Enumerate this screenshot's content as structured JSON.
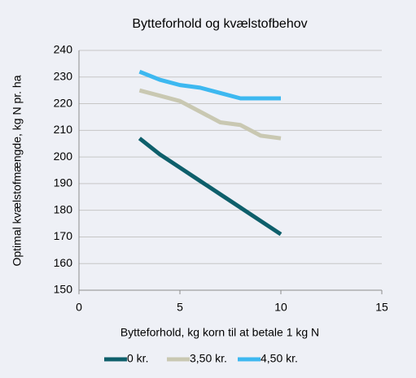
{
  "chart_data": {
    "type": "line",
    "title": "Bytteforhold og kvælstofbehov",
    "x_label": "Bytteforhold, kg korn til at betale 1 kg N",
    "y_label": "Optimal kvælstofmængde, kg N pr. ha",
    "x": [
      3,
      4,
      5,
      6,
      7,
      8,
      9,
      10
    ],
    "series": [
      {
        "name": "0 kr.",
        "color": "#0e5f6b",
        "values": [
          207,
          201,
          196,
          191,
          186,
          181,
          176,
          171
        ]
      },
      {
        "name": "3,50 kr.",
        "color": "#c9c8b2",
        "values": [
          225,
          223,
          221,
          217,
          213,
          212,
          208,
          207
        ]
      },
      {
        "name": "4,50 kr.",
        "color": "#3db8f0",
        "values": [
          232,
          229,
          227,
          226,
          224,
          222,
          222,
          222
        ]
      }
    ],
    "xlim": [
      0,
      15
    ],
    "xticks": [
      0,
      5,
      10,
      15
    ],
    "ylim": [
      150,
      240
    ],
    "yticks": [
      150,
      160,
      170,
      180,
      190,
      200,
      210,
      220,
      230,
      240
    ],
    "grid": true,
    "legend": "bottom"
  }
}
